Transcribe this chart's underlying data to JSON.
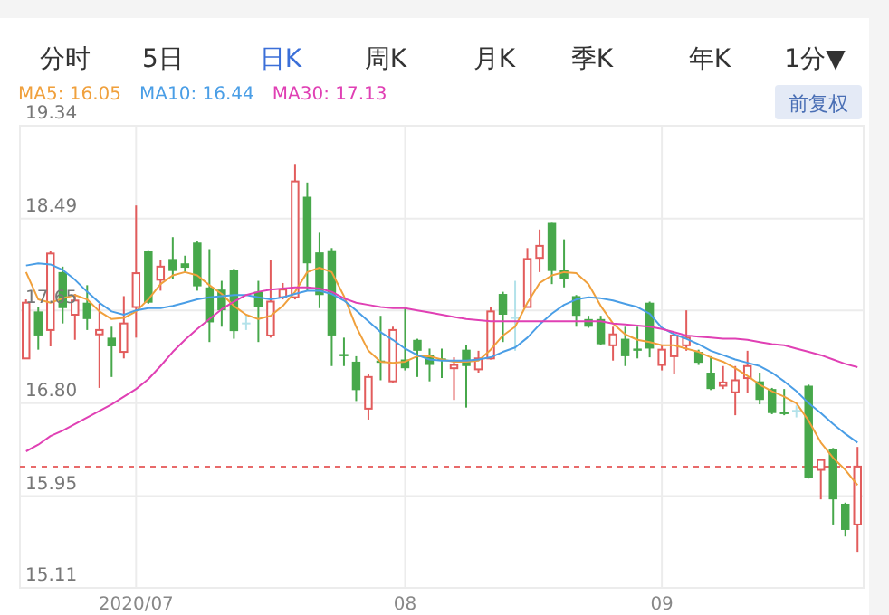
{
  "chart_data": {
    "type": "candlestick",
    "categories": [
      null,
      null,
      null,
      null,
      null,
      null,
      null,
      null,
      null,
      "2020/07",
      null,
      null,
      null,
      null,
      null,
      null,
      null,
      null,
      null,
      null,
      null,
      null,
      null,
      null,
      null,
      null,
      null,
      null,
      null,
      null,
      null,
      "08",
      null,
      null,
      null,
      null,
      null,
      null,
      null,
      null,
      null,
      null,
      null,
      null,
      null,
      null,
      null,
      null,
      null,
      null,
      null,
      null,
      "09",
      null,
      null,
      null,
      null,
      null,
      null,
      null,
      null,
      null,
      null,
      null,
      null,
      null,
      null,
      null,
      null
    ],
    "ohlc": [
      [
        17.21,
        17.75,
        17.21,
        17.72
      ],
      [
        17.64,
        17.68,
        17.29,
        17.42
      ],
      [
        17.47,
        18.19,
        17.32,
        18.17
      ],
      [
        18.0,
        18.05,
        17.53,
        17.67
      ],
      [
        17.61,
        17.8,
        17.38,
        17.74
      ],
      [
        17.72,
        17.88,
        17.47,
        17.57
      ],
      [
        17.43,
        17.71,
        16.94,
        17.47
      ],
      [
        17.4,
        17.5,
        17.04,
        17.32
      ],
      [
        17.27,
        17.78,
        17.21,
        17.53
      ],
      [
        17.68,
        18.61,
        17.4,
        17.99
      ],
      [
        18.19,
        18.2,
        17.71,
        17.72
      ],
      [
        17.93,
        18.11,
        17.83,
        18.05
      ],
      [
        18.12,
        18.32,
        17.94,
        18.01
      ],
      [
        18.08,
        18.15,
        18.0,
        18.04
      ],
      [
        18.27,
        18.28,
        17.83,
        17.87
      ],
      [
        17.86,
        18.21,
        17.36,
        17.54
      ],
      [
        17.84,
        17.92,
        17.5,
        17.65
      ],
      [
        18.02,
        18.03,
        17.39,
        17.46
      ],
      [
        17.53,
        17.61,
        17.47,
        17.53
      ],
      [
        17.82,
        17.92,
        17.36,
        17.68
      ],
      [
        17.42,
        18.11,
        17.4,
        17.73
      ],
      [
        17.77,
        17.9,
        17.75,
        17.84
      ],
      [
        17.77,
        18.99,
        17.75,
        18.83
      ],
      [
        18.69,
        18.82,
        17.83,
        18.08
      ],
      [
        18.18,
        18.36,
        17.67,
        17.79
      ],
      [
        18.2,
        18.22,
        17.14,
        17.42
      ],
      [
        17.25,
        17.4,
        17.14,
        17.23
      ],
      [
        17.18,
        17.23,
        16.82,
        16.92
      ],
      [
        16.75,
        17.07,
        16.65,
        17.04
      ],
      [
        17.19,
        17.6,
        17.01,
        17.17
      ],
      [
        17.0,
        17.5,
        16.99,
        17.47
      ],
      [
        17.2,
        17.68,
        17.1,
        17.12
      ],
      [
        17.38,
        17.39,
        17.04,
        17.28
      ],
      [
        17.24,
        17.3,
        17.0,
        17.15
      ],
      [
        17.21,
        17.3,
        17.03,
        17.19
      ],
      [
        17.12,
        17.22,
        16.83,
        17.15
      ],
      [
        17.29,
        17.33,
        16.76,
        17.14
      ],
      [
        17.11,
        17.28,
        17.08,
        17.21
      ],
      [
        17.21,
        17.68,
        17.2,
        17.64
      ],
      [
        17.8,
        17.82,
        17.36,
        17.61
      ],
      [
        17.58,
        17.92,
        17.28,
        17.58
      ],
      [
        17.68,
        18.22,
        17.68,
        18.12
      ],
      [
        18.13,
        18.39,
        18.0,
        18.24
      ],
      [
        18.45,
        18.45,
        17.89,
        18.01
      ],
      [
        18.02,
        18.3,
        17.86,
        17.94
      ],
      [
        17.78,
        17.79,
        17.5,
        17.6
      ],
      [
        17.57,
        17.6,
        17.49,
        17.5
      ],
      [
        17.57,
        17.6,
        17.33,
        17.34
      ],
      [
        17.33,
        17.5,
        17.19,
        17.43
      ],
      [
        17.39,
        17.5,
        17.14,
        17.23
      ],
      [
        17.3,
        17.5,
        17.21,
        17.28
      ],
      [
        17.72,
        17.73,
        17.22,
        17.3
      ],
      [
        17.15,
        17.33,
        17.1,
        17.29
      ],
      [
        17.23,
        17.44,
        17.07,
        17.42
      ],
      [
        17.33,
        17.65,
        17.28,
        17.4
      ],
      [
        17.27,
        17.29,
        17.15,
        17.17
      ],
      [
        17.08,
        17.23,
        16.92,
        16.93
      ],
      [
        16.96,
        17.14,
        16.93,
        16.99
      ],
      [
        16.9,
        17.14,
        16.69,
        17.01
      ],
      [
        17.03,
        17.28,
        16.89,
        17.14
      ],
      [
        17.0,
        17.08,
        16.79,
        16.83
      ],
      [
        16.93,
        16.94,
        16.7,
        16.71
      ],
      [
        16.72,
        16.93,
        16.69,
        16.7
      ],
      [
        16.73,
        16.78,
        16.67,
        16.73
      ],
      [
        16.96,
        16.97,
        16.11,
        16.12
      ],
      [
        16.19,
        16.29,
        15.92,
        16.28
      ],
      [
        16.38,
        16.39,
        15.69,
        15.92
      ],
      [
        15.88,
        15.89,
        15.58,
        15.64
      ],
      [
        15.69,
        16.4,
        15.44,
        16.22
      ]
    ],
    "colors": [
      "#e25c5c",
      "#47a84b",
      "#e25c5c",
      "#47a84b",
      "#e25c5c",
      "#47a84b",
      "#e25c5c",
      "#47a84b",
      "#e25c5c",
      "#e25c5c",
      "#47a84b",
      "#e25c5c",
      "#47a84b",
      "#47a84b",
      "#47a84b",
      "#47a84b",
      "#47a84b",
      "#47a84b",
      "#b3e2ea",
      "#47a84b",
      "#e25c5c",
      "#e25c5c",
      "#e25c5c",
      "#47a84b",
      "#47a84b",
      "#47a84b",
      "#47a84b",
      "#47a84b",
      "#e25c5c",
      "#47a84b",
      "#e25c5c",
      "#47a84b",
      "#47a84b",
      "#47a84b",
      "#47a84b",
      "#e25c5c",
      "#47a84b",
      "#e25c5c",
      "#e25c5c",
      "#47a84b",
      "#b3e2ea",
      "#e25c5c",
      "#e25c5c",
      "#47a84b",
      "#47a84b",
      "#47a84b",
      "#47a84b",
      "#47a84b",
      "#e25c5c",
      "#47a84b",
      "#47a84b",
      "#47a84b",
      "#e25c5c",
      "#e25c5c",
      "#e25c5c",
      "#47a84b",
      "#47a84b",
      "#e25c5c",
      "#e25c5c",
      "#e25c5c",
      "#47a84b",
      "#47a84b",
      "#47a84b",
      "#b3e2ea",
      "#47a84b",
      "#e25c5c",
      "#47a84b",
      "#47a84b",
      "#e25c5c"
    ],
    "series": [
      {
        "name": "MA5: 16.05",
        "type": "line",
        "color": "#f0a03c",
        "values": [
          18.0,
          17.75,
          17.72,
          17.76,
          17.79,
          17.75,
          17.64,
          17.57,
          17.58,
          17.64,
          17.75,
          17.89,
          17.97,
          18.0,
          17.97,
          17.88,
          17.8,
          17.69,
          17.61,
          17.57,
          17.6,
          17.69,
          17.82,
          18.0,
          18.04,
          18.0,
          17.78,
          17.5,
          17.28,
          17.18,
          17.17,
          17.18,
          17.23,
          17.23,
          17.2,
          17.18,
          17.18,
          17.19,
          17.29,
          17.42,
          17.5,
          17.72,
          17.9,
          17.97,
          18.0,
          17.99,
          17.89,
          17.69,
          17.53,
          17.43,
          17.38,
          17.36,
          17.33,
          17.33,
          17.3,
          17.27,
          17.22,
          17.18,
          17.12,
          17.05,
          16.97,
          16.91,
          16.86,
          16.8,
          16.64,
          16.44,
          16.3,
          16.19,
          16.05
        ]
      },
      {
        "name": "MA10: 16.44",
        "type": "line",
        "color": "#4a9ee6",
        "values": [
          18.06,
          18.08,
          18.07,
          18.02,
          17.93,
          17.82,
          17.72,
          17.64,
          17.61,
          17.65,
          17.67,
          17.67,
          17.69,
          17.72,
          17.75,
          17.77,
          17.78,
          17.79,
          17.79,
          17.77,
          17.75,
          17.77,
          17.8,
          17.83,
          17.83,
          17.8,
          17.74,
          17.65,
          17.55,
          17.45,
          17.38,
          17.3,
          17.24,
          17.2,
          17.19,
          17.19,
          17.19,
          17.2,
          17.22,
          17.27,
          17.31,
          17.4,
          17.52,
          17.62,
          17.7,
          17.75,
          17.77,
          17.76,
          17.74,
          17.71,
          17.68,
          17.62,
          17.49,
          17.43,
          17.39,
          17.34,
          17.28,
          17.24,
          17.2,
          17.17,
          17.14,
          17.08,
          17.0,
          16.91,
          16.8,
          16.71,
          16.61,
          16.52,
          16.44
        ]
      },
      {
        "name": "MA30: 17.13",
        "type": "line",
        "color": "#e040b4",
        "values": [
          16.36,
          16.42,
          16.5,
          16.55,
          16.61,
          16.67,
          16.73,
          16.79,
          16.86,
          16.93,
          17.02,
          17.14,
          17.27,
          17.38,
          17.48,
          17.57,
          17.66,
          17.73,
          17.79,
          17.82,
          17.84,
          17.85,
          17.86,
          17.86,
          17.85,
          17.82,
          17.76,
          17.72,
          17.7,
          17.68,
          17.67,
          17.67,
          17.65,
          17.63,
          17.61,
          17.59,
          17.57,
          17.56,
          17.55,
          17.55,
          17.55,
          17.55,
          17.55,
          17.55,
          17.55,
          17.55,
          17.55,
          17.55,
          17.53,
          17.52,
          17.51,
          17.5,
          17.48,
          17.45,
          17.42,
          17.41,
          17.4,
          17.39,
          17.39,
          17.38,
          17.36,
          17.34,
          17.33,
          17.3,
          17.27,
          17.24,
          17.2,
          17.16,
          17.13
        ]
      }
    ],
    "ylim": [
      15.11,
      19.34
    ],
    "yticks": [
      19.34,
      18.49,
      17.65,
      {
        "value": 16.8,
        "label": "16.80"
      },
      15.95,
      15.11
    ],
    "grid": true,
    "legend": "top left",
    "ref_lines": [
      {
        "axis": "y",
        "value": 16.22,
        "color": "#e86a6a",
        "line_style": "dashed"
      }
    ],
    "annotations": [
      "分时",
      "5日",
      "日K",
      "周K",
      "月K",
      "季K",
      "年K",
      "1分▼",
      "前复权"
    ]
  }
}
